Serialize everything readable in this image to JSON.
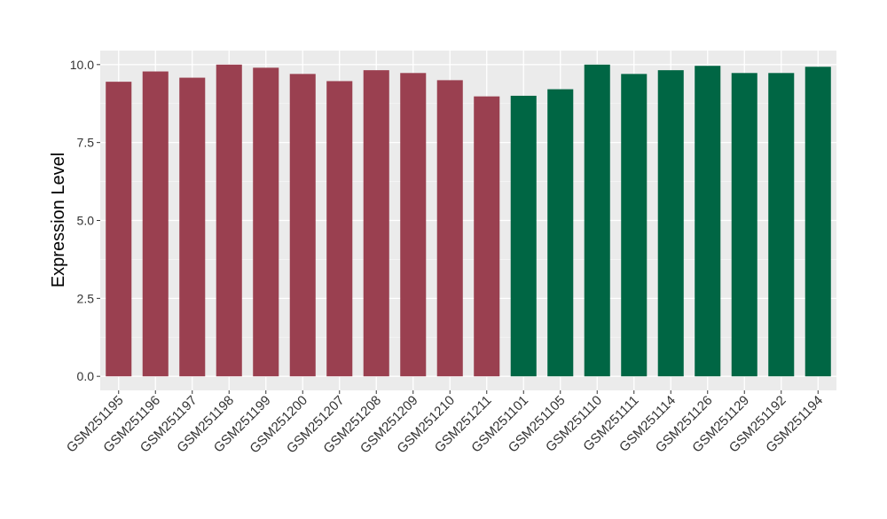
{
  "chart_data": {
    "type": "bar",
    "title": "",
    "xlabel": "",
    "ylabel": "Expression Level",
    "ylim": [
      -0.45,
      10.45
    ],
    "yticks": [
      0.0,
      2.5,
      5.0,
      7.5,
      10.0
    ],
    "ytick_labels": [
      "0.0",
      "2.5",
      "5.0",
      "7.5",
      "10.0"
    ],
    "grid": true,
    "legend": "none",
    "background_color": "#EBEBEB",
    "categories": [
      "GSM251195",
      "GSM251196",
      "GSM251197",
      "GSM251198",
      "GSM251199",
      "GSM251200",
      "GSM251207",
      "GSM251208",
      "GSM251209",
      "GSM251210",
      "GSM251211",
      "GSM251101",
      "GSM251105",
      "GSM251110",
      "GSM251111",
      "GSM251114",
      "GSM251126",
      "GSM251129",
      "GSM251192",
      "GSM251194"
    ],
    "values": [
      9.45,
      9.78,
      9.58,
      10.0,
      9.9,
      9.7,
      9.47,
      9.82,
      9.73,
      9.5,
      8.98,
      9.0,
      9.21,
      10.0,
      9.7,
      9.82,
      9.96,
      9.73,
      9.73,
      9.93
    ],
    "bar_colors": [
      "#9A4050",
      "#9A4050",
      "#9A4050",
      "#9A4050",
      "#9A4050",
      "#9A4050",
      "#9A4050",
      "#9A4050",
      "#9A4050",
      "#9A4050",
      "#9A4050",
      "#006644",
      "#006644",
      "#006644",
      "#006644",
      "#006644",
      "#006644",
      "#006644",
      "#006644",
      "#006644"
    ]
  }
}
